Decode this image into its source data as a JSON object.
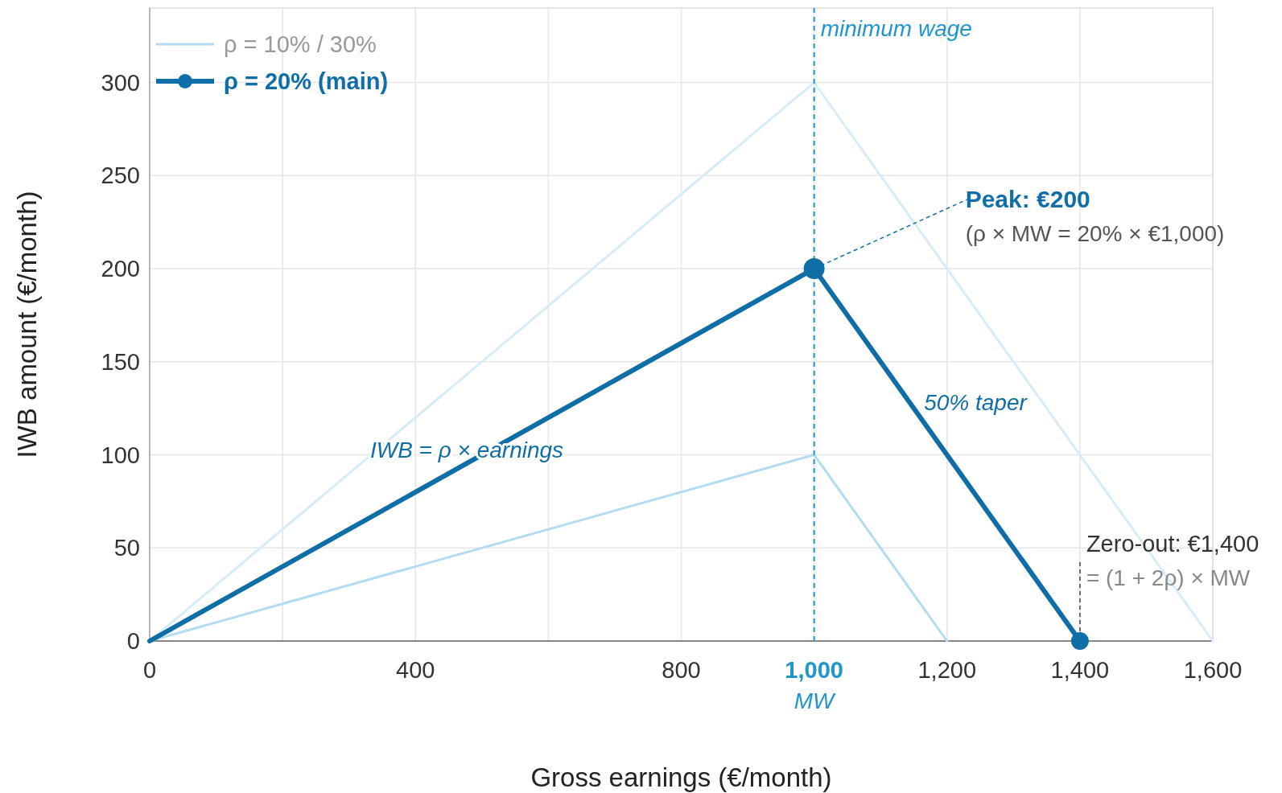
{
  "chart_data": {
    "type": "line",
    "xlabel": "Gross earnings (€/month)",
    "ylabel": "IWB amount (€/month)",
    "xlim": [
      0,
      1600
    ],
    "ylim": [
      0,
      340
    ],
    "xticks": [
      0,
      {
        "value": 200,
        "label": null
      },
      400,
      {
        "value": 600,
        "label": null
      },
      800,
      {
        "value": 1000,
        "label": "1,000"
      },
      {
        "value": 1200,
        "label": "1,200"
      },
      {
        "value": 1400,
        "label": "1,400"
      },
      {
        "value": 1600,
        "label": "1,600"
      }
    ],
    "yticks": [
      0,
      50,
      100,
      150,
      200,
      250,
      300
    ],
    "grid": true,
    "legend": "top left",
    "series": [
      {
        "color": "#d6edf9",
        "x": [
          0,
          1000,
          1600
        ],
        "values": [
          0,
          300,
          0
        ]
      },
      {
        "name": "ρ = 10% / 30%",
        "color": "#b3dcf1",
        "x": [
          0,
          1000,
          1200
        ],
        "values": [
          0,
          100,
          0
        ]
      },
      {
        "name": "ρ = 20% (main)",
        "color": "#0f6ea8",
        "x": [
          0,
          1000,
          1400
        ],
        "values": [
          0,
          200,
          0
        ]
      },
      {
        "type": "scatter",
        "color": "#0f6ea8",
        "marker": "circle",
        "x": [
          1000,
          1400
        ],
        "values": [
          200,
          0
        ]
      }
    ],
    "ref_lines": [
      {
        "axis": "x",
        "value": 1000,
        "label": "minimum wage",
        "color": "#2196cc",
        "line_style": "dashed"
      }
    ],
    "annotations": [
      {
        "text": "Peak: €200\n(ρ × MW = 20% × €1,000)",
        "x": 1000,
        "y": 200
      },
      "50% taper",
      "IWB = ρ × earnings",
      {
        "text": "Zero-out: €1,400\n= (1 + 2ρ) × MW",
        "x": 1400,
        "y": 0
      },
      "MW"
    ]
  }
}
